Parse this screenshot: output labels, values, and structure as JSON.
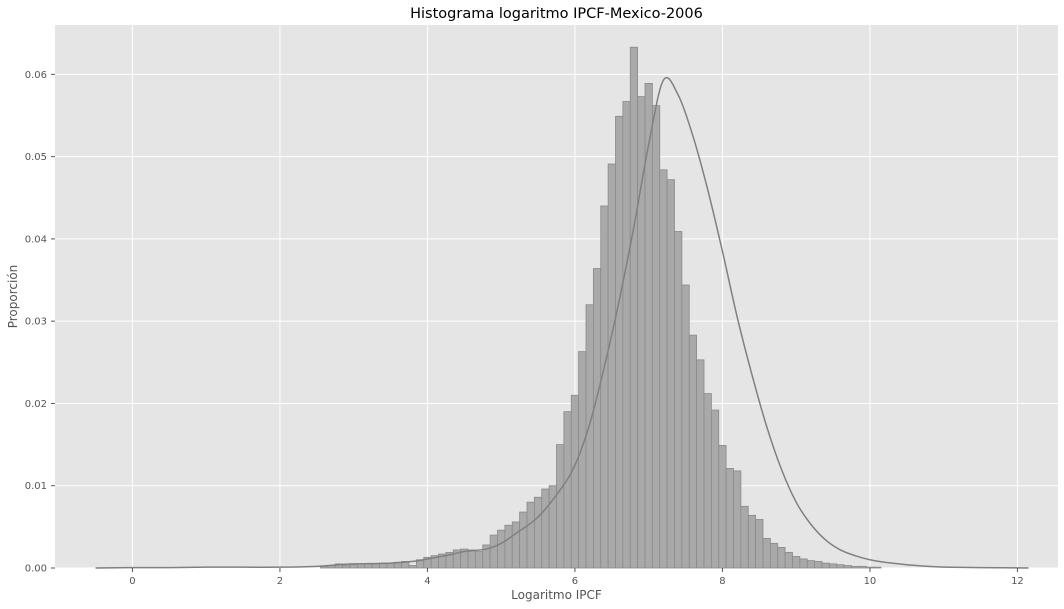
{
  "chart_data": {
    "type": "bar",
    "title": "Histograma logaritmo IPCF-Mexico-2006",
    "xlabel": "Logaritmo IPCF",
    "ylabel": "Proporción",
    "xlim": [
      -1.05,
      12.55
    ],
    "ylim": [
      0,
      0.066
    ],
    "xticks": [
      0,
      2,
      4,
      6,
      8,
      10,
      12
    ],
    "xtick_labels": [
      "0",
      "2",
      "4",
      "6",
      "8",
      "10",
      "12"
    ],
    "yticks": [
      0,
      0.01,
      0.02,
      0.03,
      0.04,
      0.05,
      0.06
    ],
    "ytick_labels": [
      "0.00",
      "0.01",
      "0.02",
      "0.03",
      "0.04",
      "0.05",
      "0.06"
    ],
    "grid": true,
    "background": "#e5e5e5",
    "bar_color": "#a9a9a9",
    "bar_edge_color": "#8a8a8a",
    "line_color": "#808080",
    "bins": {
      "start": 2.55,
      "width": 0.1,
      "values": [
        0.0002,
        0.0003,
        0.0005,
        0.0003,
        0.0004,
        0.0005,
        0.0005,
        0.0005,
        0.0006,
        0.0006,
        0.0007,
        0.0008,
        0.0003,
        0.001,
        0.0013,
        0.0015,
        0.0017,
        0.0019,
        0.0022,
        0.0023,
        0.0022,
        0.002,
        0.0028,
        0.004,
        0.0046,
        0.0052,
        0.0056,
        0.0068,
        0.008,
        0.0086,
        0.0096,
        0.01,
        0.015,
        0.019,
        0.021,
        0.0263,
        0.032,
        0.0364,
        0.044,
        0.0491,
        0.0549,
        0.0567,
        0.0633,
        0.0573,
        0.0589,
        0.0562,
        0.0484,
        0.0472,
        0.0409,
        0.0344,
        0.0283,
        0.0253,
        0.0212,
        0.0192,
        0.0149,
        0.0121,
        0.0118,
        0.0075,
        0.0064,
        0.0059,
        0.0036,
        0.003,
        0.0025,
        0.0019,
        0.0014,
        0.0011,
        0.0009,
        0.0008,
        0.0006,
        0.0005,
        0.0004,
        0.0003,
        0.0002,
        0.0002,
        0.0001,
        0.0001
      ]
    },
    "kde": {
      "x": [
        -0.5,
        0,
        0.5,
        1,
        1.5,
        2,
        2.5,
        2.8,
        3,
        3.5,
        3.8,
        4,
        4.3,
        4.5,
        4.8,
        5,
        5.2,
        5.5,
        5.8,
        6,
        6.2,
        6.4,
        6.6,
        6.8,
        7,
        7.2,
        7.4,
        7.6,
        7.8,
        8,
        8.2,
        8.4,
        8.6,
        8.8,
        9,
        9.2,
        9.4,
        9.6,
        9.8,
        10,
        10.2,
        10.5,
        10.8,
        11,
        11.5,
        12.15
      ],
      "y": [
        0,
        5e-05,
        5e-05,
        0.0001,
        0.0001,
        0.0001,
        0.0002,
        0.0004,
        0.0005,
        0.0006,
        0.0008,
        0.0011,
        0.0016,
        0.002,
        0.0023,
        0.003,
        0.0042,
        0.0062,
        0.0095,
        0.0125,
        0.0175,
        0.0245,
        0.0325,
        0.0415,
        0.0515,
        0.0593,
        0.0575,
        0.0525,
        0.046,
        0.0385,
        0.0305,
        0.0235,
        0.0172,
        0.012,
        0.008,
        0.0053,
        0.0034,
        0.0022,
        0.0015,
        0.001,
        0.0007,
        0.0004,
        0.0002,
        0.0001,
        5e-05,
        0
      ]
    }
  }
}
